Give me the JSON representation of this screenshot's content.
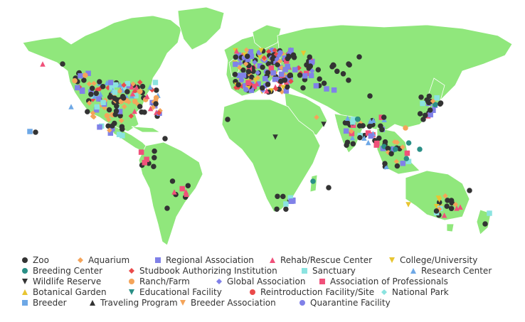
{
  "map": {
    "land_color": "#90e77c",
    "border_color": "#ffffff",
    "ocean_color": "#ffffff"
  },
  "legend": {
    "rows": [
      [
        {
          "label": "Zoo",
          "shape": "circle",
          "color": "#333333"
        },
        {
          "label": "Aquarium",
          "shape": "diamond",
          "color": "#f4a45a"
        },
        {
          "label": "Regional Association",
          "shape": "square",
          "color": "#8081e8"
        },
        {
          "label": "Rehab/Rescue Center",
          "shape": "triangle",
          "color": "#f0517a"
        },
        {
          "label": "College/University",
          "shape": "triangle-down",
          "color": "#e8c531"
        }
      ],
      [
        {
          "label": "Breeding Center",
          "shape": "circle",
          "color": "#2a8f86"
        },
        {
          "label": "Studbook Authorizing Institution",
          "shape": "diamond",
          "color": "#ea4a4a"
        },
        {
          "label": "Sanctuary",
          "shape": "square",
          "color": "#8be3e0"
        },
        {
          "label": "Research Center",
          "shape": "triangle",
          "color": "#6ea8e6"
        }
      ],
      [
        {
          "label": "Wildlife Reserve",
          "shape": "triangle-down",
          "color": "#333333"
        },
        {
          "label": "Ranch/Farm",
          "shape": "circle",
          "color": "#f4a45a"
        },
        {
          "label": "Global Association",
          "shape": "diamond",
          "color": "#8081e8"
        },
        {
          "label": "Association of Professionals",
          "shape": "square",
          "color": "#f0517a"
        }
      ],
      [
        {
          "label": "Botanical Garden",
          "shape": "triangle",
          "color": "#e8c531"
        },
        {
          "label": "Educational Facility",
          "shape": "triangle-down",
          "color": "#2a8f86"
        },
        {
          "label": "Reintroduction Facility/Site",
          "shape": "circle",
          "color": "#ea4a4a"
        },
        {
          "label": "National Park",
          "shape": "diamond",
          "color": "#8be3e0"
        }
      ],
      [
        {
          "label": "Breeder",
          "shape": "square",
          "color": "#6ea8e6"
        },
        {
          "label": "Traveling Program",
          "shape": "triangle",
          "color": "#333333"
        },
        {
          "label": "Breeder Association",
          "shape": "triangle-down",
          "color": "#f4a45a"
        },
        {
          "label": "Quarantine Facility",
          "shape": "circle",
          "color": "#8081e8"
        }
      ]
    ]
  }
}
